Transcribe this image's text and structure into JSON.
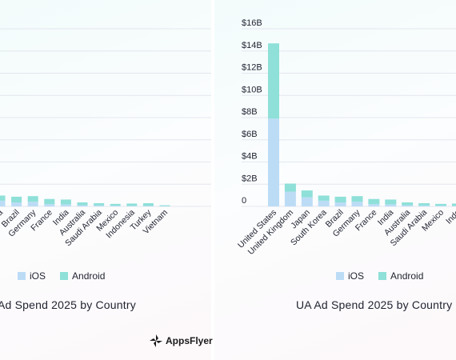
{
  "chart_data": [
    {
      "type": "bar",
      "stacked": true,
      "title": "Ad Spend 2025 by Country",
      "categories": [
        "orea",
        "Brazil",
        "Germany",
        "France",
        "India",
        "Australia",
        "Saudi Arabia",
        "Mexico",
        "Indonesia",
        "Turkey",
        "Vietnam"
      ],
      "series": [
        {
          "name": "iOS",
          "values": [
            0.5,
            0.35,
            0.4,
            0.2,
            0.18,
            0.1,
            0.08,
            0.06,
            0.05,
            0.04,
            0.02
          ]
        },
        {
          "name": "Android",
          "values": [
            0.45,
            0.5,
            0.5,
            0.45,
            0.42,
            0.25,
            0.2,
            0.16,
            0.2,
            0.24,
            0.08
          ]
        }
      ],
      "legend": "bottom",
      "grid": true
    },
    {
      "type": "bar",
      "stacked": true,
      "title": "UA Ad Spend 2025 by Country",
      "categories": [
        "United States",
        "United Kingdom",
        "Japan",
        "South Korea",
        "Brazil",
        "Germany",
        "France",
        "India",
        "Australia",
        "Saudi Arabia",
        "Mexico",
        "Indo"
      ],
      "series": [
        {
          "name": "iOS",
          "values": [
            7.7,
            1.3,
            0.8,
            0.5,
            0.35,
            0.4,
            0.2,
            0.18,
            0.1,
            0.08,
            0.06,
            0.05
          ]
        },
        {
          "name": "Android",
          "values": [
            6.6,
            0.7,
            0.6,
            0.45,
            0.5,
            0.5,
            0.45,
            0.42,
            0.25,
            0.2,
            0.16,
            0.2
          ]
        }
      ],
      "yticks": [
        "0",
        "$2B",
        "$4B",
        "$6B",
        "$8B",
        "$10B",
        "$12B",
        "$14B",
        "$16B"
      ],
      "ylim": [
        0,
        16
      ],
      "legend": "bottom",
      "grid": true
    }
  ],
  "colors": {
    "ios": "#bcdcf6",
    "android": "#8ee0d8",
    "grid": "#e4e7ee",
    "text": "#1f2230"
  },
  "logo_text": "AppsFlyer"
}
